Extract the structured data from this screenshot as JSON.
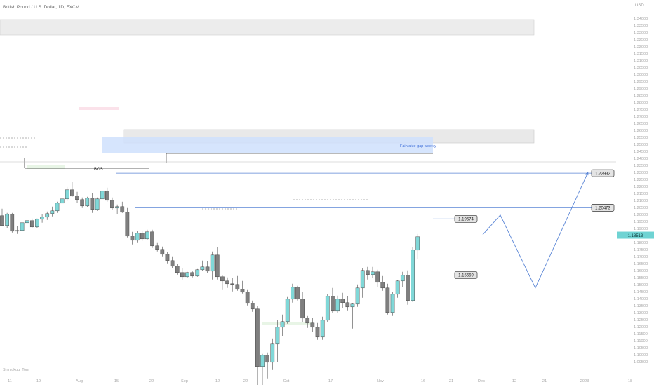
{
  "header": {
    "symbol_title": "British Pound / U.S. Dollar, 1D, FXCM"
  },
  "footer": {
    "author": "Shinjukuu_Tom_"
  },
  "chart_data": {
    "type": "candlestick",
    "title": "British Pound / U.S. Dollar, 1D, FXCM",
    "currency_label": "USD",
    "price_axis": {
      "range": [
        1.0899,
        1.3499
      ],
      "ticks": [
        1.34,
        1.335,
        1.33,
        1.325,
        1.32,
        1.315,
        1.31,
        1.305,
        1.3,
        1.295,
        1.29,
        1.285,
        1.28,
        1.275,
        1.27,
        1.265,
        1.26,
        1.255,
        1.25,
        1.245,
        1.24,
        1.235,
        1.23,
        1.225,
        1.22,
        1.215,
        1.21,
        1.205,
        1.2,
        1.195,
        1.19,
        1.185,
        1.18,
        1.175,
        1.17,
        1.165,
        1.16,
        1.155,
        1.15,
        1.145,
        1.14,
        1.135,
        1.13,
        1.125,
        1.12,
        1.115,
        1.11,
        1.105,
        1.1,
        1.095
      ]
    },
    "time_axis": {
      "labels": [
        "11",
        "19",
        "Aug",
        "15",
        "22",
        "Sep",
        "12",
        "22",
        "Oct",
        "17",
        "Nov",
        "16",
        "21",
        "Dec",
        "12",
        "21",
        "2023",
        "18"
      ]
    },
    "candles": [
      {
        "o": 1.199,
        "h": 1.204,
        "l": 1.1925,
        "c": 1.192
      },
      {
        "o": 1.192,
        "h": 1.201,
        "l": 1.19,
        "c": 1.2
      },
      {
        "o": 1.2,
        "h": 1.201,
        "l": 1.187,
        "c": 1.188
      },
      {
        "o": 1.188,
        "h": 1.1915,
        "l": 1.186,
        "c": 1.1885
      },
      {
        "o": 1.1885,
        "h": 1.1945,
        "l": 1.186,
        "c": 1.194
      },
      {
        "o": 1.194,
        "h": 1.197,
        "l": 1.1915,
        "c": 1.1955
      },
      {
        "o": 1.1955,
        "h": 1.197,
        "l": 1.19,
        "c": 1.191
      },
      {
        "o": 1.191,
        "h": 1.197,
        "l": 1.19,
        "c": 1.1965
      },
      {
        "o": 1.1965,
        "h": 1.2,
        "l": 1.194,
        "c": 1.198
      },
      {
        "o": 1.198,
        "h": 1.202,
        "l": 1.196,
        "c": 1.2005
      },
      {
        "o": 1.2005,
        "h": 1.2055,
        "l": 1.1985,
        "c": 1.2025
      },
      {
        "o": 1.2025,
        "h": 1.209,
        "l": 1.201,
        "c": 1.208
      },
      {
        "o": 1.208,
        "h": 1.213,
        "l": 1.206,
        "c": 1.211
      },
      {
        "o": 1.211,
        "h": 1.2195,
        "l": 1.2095,
        "c": 1.2175
      },
      {
        "o": 1.2175,
        "h": 1.223,
        "l": 1.2125,
        "c": 1.213
      },
      {
        "o": 1.213,
        "h": 1.216,
        "l": 1.208,
        "c": 1.2105
      },
      {
        "o": 1.2105,
        "h": 1.212,
        "l": 1.2045,
        "c": 1.206
      },
      {
        "o": 1.206,
        "h": 1.2125,
        "l": 1.205,
        "c": 1.2115
      },
      {
        "o": 1.2115,
        "h": 1.215,
        "l": 1.201,
        "c": 1.2035
      },
      {
        "o": 1.2035,
        "h": 1.212,
        "l": 1.2025,
        "c": 1.211
      },
      {
        "o": 1.211,
        "h": 1.2175,
        "l": 1.209,
        "c": 1.2165
      },
      {
        "o": 1.2165,
        "h": 1.219,
        "l": 1.209,
        "c": 1.21
      },
      {
        "o": 1.21,
        "h": 1.212,
        "l": 1.203,
        "c": 1.2045
      },
      {
        "o": 1.2045,
        "h": 1.207,
        "l": 1.2,
        "c": 1.2055
      },
      {
        "o": 1.2055,
        "h": 1.209,
        "l": 1.201,
        "c": 1.2015
      },
      {
        "o": 1.2015,
        "h": 1.2045,
        "l": 1.1835,
        "c": 1.1845
      },
      {
        "o": 1.1845,
        "h": 1.1875,
        "l": 1.1785,
        "c": 1.1815
      },
      {
        "o": 1.1815,
        "h": 1.188,
        "l": 1.18,
        "c": 1.1865
      },
      {
        "o": 1.1865,
        "h": 1.188,
        "l": 1.181,
        "c": 1.1825
      },
      {
        "o": 1.1825,
        "h": 1.189,
        "l": 1.1815,
        "c": 1.1875
      },
      {
        "o": 1.1875,
        "h": 1.189,
        "l": 1.176,
        "c": 1.1775
      },
      {
        "o": 1.1775,
        "h": 1.18,
        "l": 1.1735,
        "c": 1.175
      },
      {
        "o": 1.175,
        "h": 1.177,
        "l": 1.17,
        "c": 1.1715
      },
      {
        "o": 1.1715,
        "h": 1.173,
        "l": 1.165,
        "c": 1.167
      },
      {
        "o": 1.167,
        "h": 1.17,
        "l": 1.1615,
        "c": 1.163
      },
      {
        "o": 1.163,
        "h": 1.1645,
        "l": 1.157,
        "c": 1.1585
      },
      {
        "o": 1.1585,
        "h": 1.1615,
        "l": 1.1535,
        "c": 1.1555
      },
      {
        "o": 1.1555,
        "h": 1.159,
        "l": 1.1545,
        "c": 1.1585
      },
      {
        "o": 1.1585,
        "h": 1.1595,
        "l": 1.155,
        "c": 1.156
      },
      {
        "o": 1.156,
        "h": 1.161,
        "l": 1.1555,
        "c": 1.1605
      },
      {
        "o": 1.1605,
        "h": 1.167,
        "l": 1.1595,
        "c": 1.1625
      },
      {
        "o": 1.1625,
        "h": 1.1665,
        "l": 1.158,
        "c": 1.1595
      },
      {
        "o": 1.1595,
        "h": 1.1735,
        "l": 1.1535,
        "c": 1.171
      },
      {
        "o": 1.171,
        "h": 1.1765,
        "l": 1.1535,
        "c": 1.1555
      },
      {
        "o": 1.1555,
        "h": 1.1565,
        "l": 1.146,
        "c": 1.1525
      },
      {
        "o": 1.1525,
        "h": 1.155,
        "l": 1.1475,
        "c": 1.1505
      },
      {
        "o": 1.1505,
        "h": 1.1545,
        "l": 1.145,
        "c": 1.15
      },
      {
        "o": 1.15,
        "h": 1.156,
        "l": 1.1455,
        "c": 1.1465
      },
      {
        "o": 1.1465,
        "h": 1.1525,
        "l": 1.1435,
        "c": 1.1445
      },
      {
        "o": 1.1445,
        "h": 1.146,
        "l": 1.135,
        "c": 1.1365
      },
      {
        "o": 1.1365,
        "h": 1.1385,
        "l": 1.1305,
        "c": 1.1325
      },
      {
        "o": 1.1325,
        "h": 1.1345,
        "l": 1.0745,
        "c": 1.0915
      },
      {
        "o": 1.0915,
        "h": 1.1005,
        "l": 1.0765,
        "c": 1.0995
      },
      {
        "o": 1.0995,
        "h": 1.1015,
        "l": 1.0825,
        "c": 1.0945
      },
      {
        "o": 1.0945,
        "h": 1.1115,
        "l": 1.089,
        "c": 1.1075
      },
      {
        "o": 1.1075,
        "h": 1.1245,
        "l": 1.0945,
        "c": 1.1195
      },
      {
        "o": 1.1195,
        "h": 1.1285,
        "l": 1.113,
        "c": 1.1235
      },
      {
        "o": 1.1235,
        "h": 1.141,
        "l": 1.122,
        "c": 1.1395
      },
      {
        "o": 1.1395,
        "h": 1.1505,
        "l": 1.137,
        "c": 1.148
      },
      {
        "o": 1.148,
        "h": 1.149,
        "l": 1.1385,
        "c": 1.1395
      },
      {
        "o": 1.1395,
        "h": 1.1445,
        "l": 1.123,
        "c": 1.126
      },
      {
        "o": 1.126,
        "h": 1.1275,
        "l": 1.119,
        "c": 1.1225
      },
      {
        "o": 1.1225,
        "h": 1.126,
        "l": 1.116,
        "c": 1.1195
      },
      {
        "o": 1.1195,
        "h": 1.1225,
        "l": 1.1105,
        "c": 1.1125
      },
      {
        "o": 1.1125,
        "h": 1.127,
        "l": 1.1105,
        "c": 1.1245
      },
      {
        "o": 1.1245,
        "h": 1.143,
        "l": 1.123,
        "c": 1.1415
      },
      {
        "o": 1.1415,
        "h": 1.1475,
        "l": 1.1295,
        "c": 1.131
      },
      {
        "o": 1.131,
        "h": 1.142,
        "l": 1.1295,
        "c": 1.1395
      },
      {
        "o": 1.1395,
        "h": 1.144,
        "l": 1.133,
        "c": 1.137
      },
      {
        "o": 1.137,
        "h": 1.1415,
        "l": 1.131,
        "c": 1.134
      },
      {
        "o": 1.134,
        "h": 1.1365,
        "l": 1.1185,
        "c": 1.136
      },
      {
        "o": 1.136,
        "h": 1.15,
        "l": 1.134,
        "c": 1.1475
      },
      {
        "o": 1.1475,
        "h": 1.1615,
        "l": 1.1405,
        "c": 1.16
      },
      {
        "o": 1.16,
        "h": 1.1625,
        "l": 1.1535,
        "c": 1.157
      },
      {
        "o": 1.157,
        "h": 1.1625,
        "l": 1.1545,
        "c": 1.159
      },
      {
        "o": 1.159,
        "h": 1.1605,
        "l": 1.148,
        "c": 1.1515
      },
      {
        "o": 1.1515,
        "h": 1.156,
        "l": 1.1455,
        "c": 1.1475
      },
      {
        "o": 1.1475,
        "h": 1.1505,
        "l": 1.1285,
        "c": 1.13
      },
      {
        "o": 1.13,
        "h": 1.1445,
        "l": 1.1275,
        "c": 1.143
      },
      {
        "o": 1.143,
        "h": 1.153,
        "l": 1.1405,
        "c": 1.1525
      },
      {
        "o": 1.1525,
        "h": 1.159,
        "l": 1.148,
        "c": 1.1565
      },
      {
        "o": 1.1565,
        "h": 1.16,
        "l": 1.1355,
        "c": 1.1385
      },
      {
        "o": 1.1385,
        "h": 1.1765,
        "l": 1.1375,
        "c": 1.1745
      },
      {
        "o": 1.1745,
        "h": 1.186,
        "l": 1.168,
        "c": 1.184
      }
    ],
    "levels": [
      {
        "label": "1.22932",
        "price": 1.22932
      },
      {
        "label": "1.20473",
        "price": 1.20473
      },
      {
        "label": "1.19674",
        "price": 1.19674
      },
      {
        "label": "1.15669",
        "price": 1.15669
      }
    ],
    "current_price": {
      "label": "1.18513",
      "price": 1.18513
    },
    "annotations": {
      "fvg_label": "Fairvalue gap weekly",
      "bos_label": "BOS"
    },
    "projection": [
      {
        "bar": 96,
        "price": 1.1855
      },
      {
        "bar": 99.5,
        "price": 1.1995
      },
      {
        "bar": 106.5,
        "price": 1.1475
      },
      {
        "bar": 117,
        "price": 1.2298
      }
    ],
    "colors": {
      "bull": "#80d8d8",
      "bear": "#7f7f7f",
      "level_line": "#5b86d6",
      "fvg_zone": "#cfe0fd",
      "supply_zone": "#e9e9e9",
      "demand_zone": "#e8f5e6",
      "pink_zone": "#fbe2ea"
    }
  }
}
